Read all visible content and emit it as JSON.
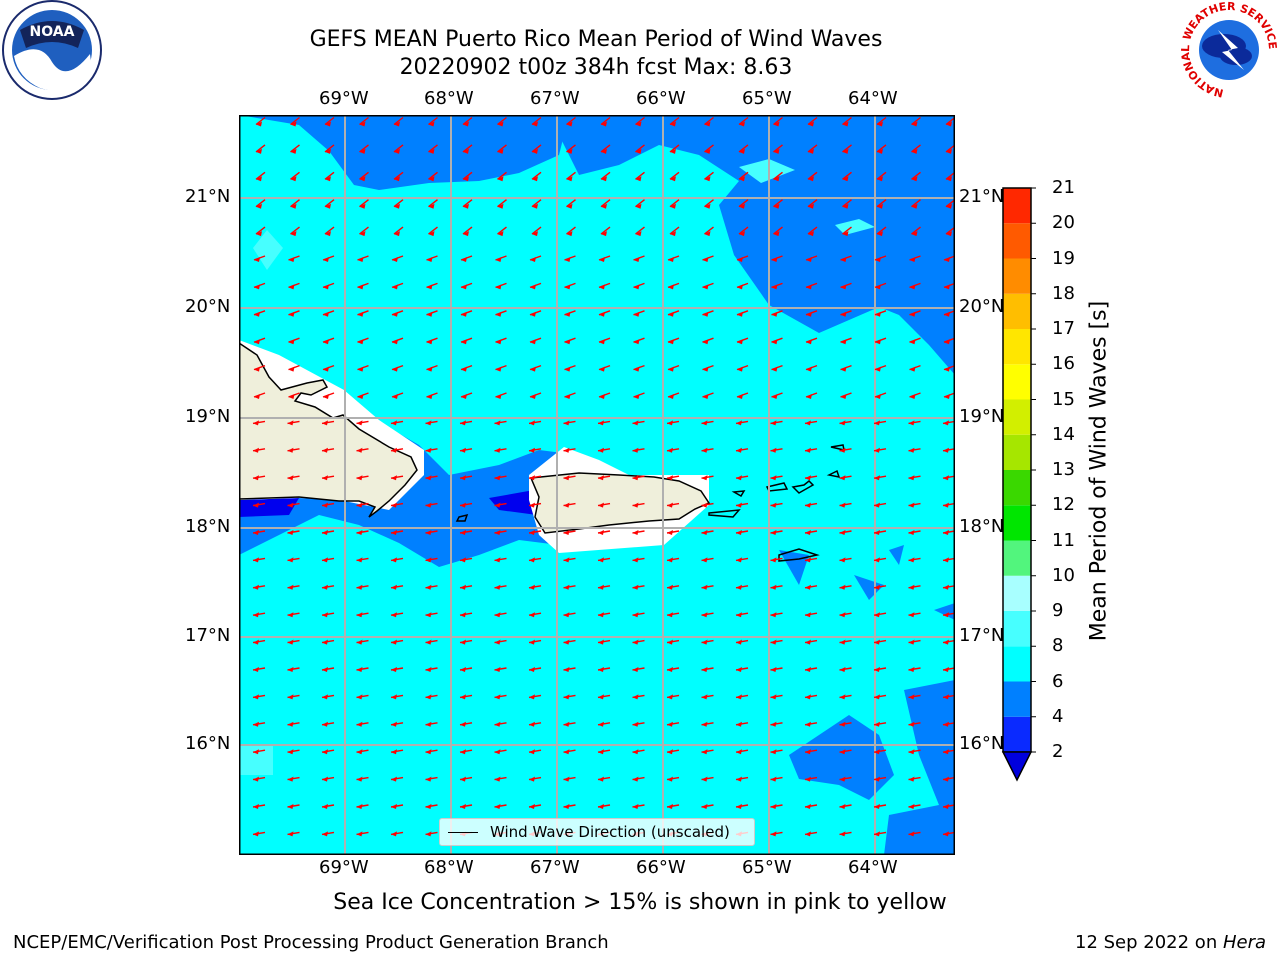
{
  "title": {
    "line1": "GEFS MEAN Puerto Rico Mean Period of Wind Waves",
    "line2": "20220902 t00z 384h fcst   Max: 8.63"
  },
  "map": {
    "lon_ticks": [
      "69°W",
      "68°W",
      "67°W",
      "66°W",
      "65°W",
      "64°W"
    ],
    "lat_ticks": [
      "21°N",
      "20°N",
      "19°N",
      "18°N",
      "17°N",
      "16°N"
    ],
    "ocean_color": "#00ffff",
    "land_color": "#efefdb",
    "arrow_color": "#ff0000",
    "legend_label": "Wind Wave Direction (unscaled)"
  },
  "colorbar": {
    "label": "Mean Period of Wind Waves [s]",
    "ticks": [
      "2",
      "4",
      "6",
      "8",
      "9",
      "10",
      "11",
      "12",
      "13",
      "14",
      "15",
      "16",
      "17",
      "18",
      "19",
      "20",
      "21"
    ],
    "colors": [
      "#0a2aff",
      "#0080ff",
      "#00ffff",
      "#47ffff",
      "#a8ffff",
      "#52f57d",
      "#00e600",
      "#3ad800",
      "#a6e600",
      "#d2ef00",
      "#ffff00",
      "#ffe600",
      "#ffbe00",
      "#ff8c00",
      "#ff5a00",
      "#ff2800"
    ],
    "extend_color": "#0000dd"
  },
  "footer": {
    "left": "NCEP/EMC/Verification Post Processing Product Generation Branch",
    "right_date": "12 Sep 2022 on ",
    "right_host": "Hera",
    "note": "Sea Ice Concentration > 15% is shown in pink to yellow"
  },
  "logos": {
    "noaa": "NOAA",
    "nws_ring": "NATIONAL WEATHER SERVICE"
  }
}
